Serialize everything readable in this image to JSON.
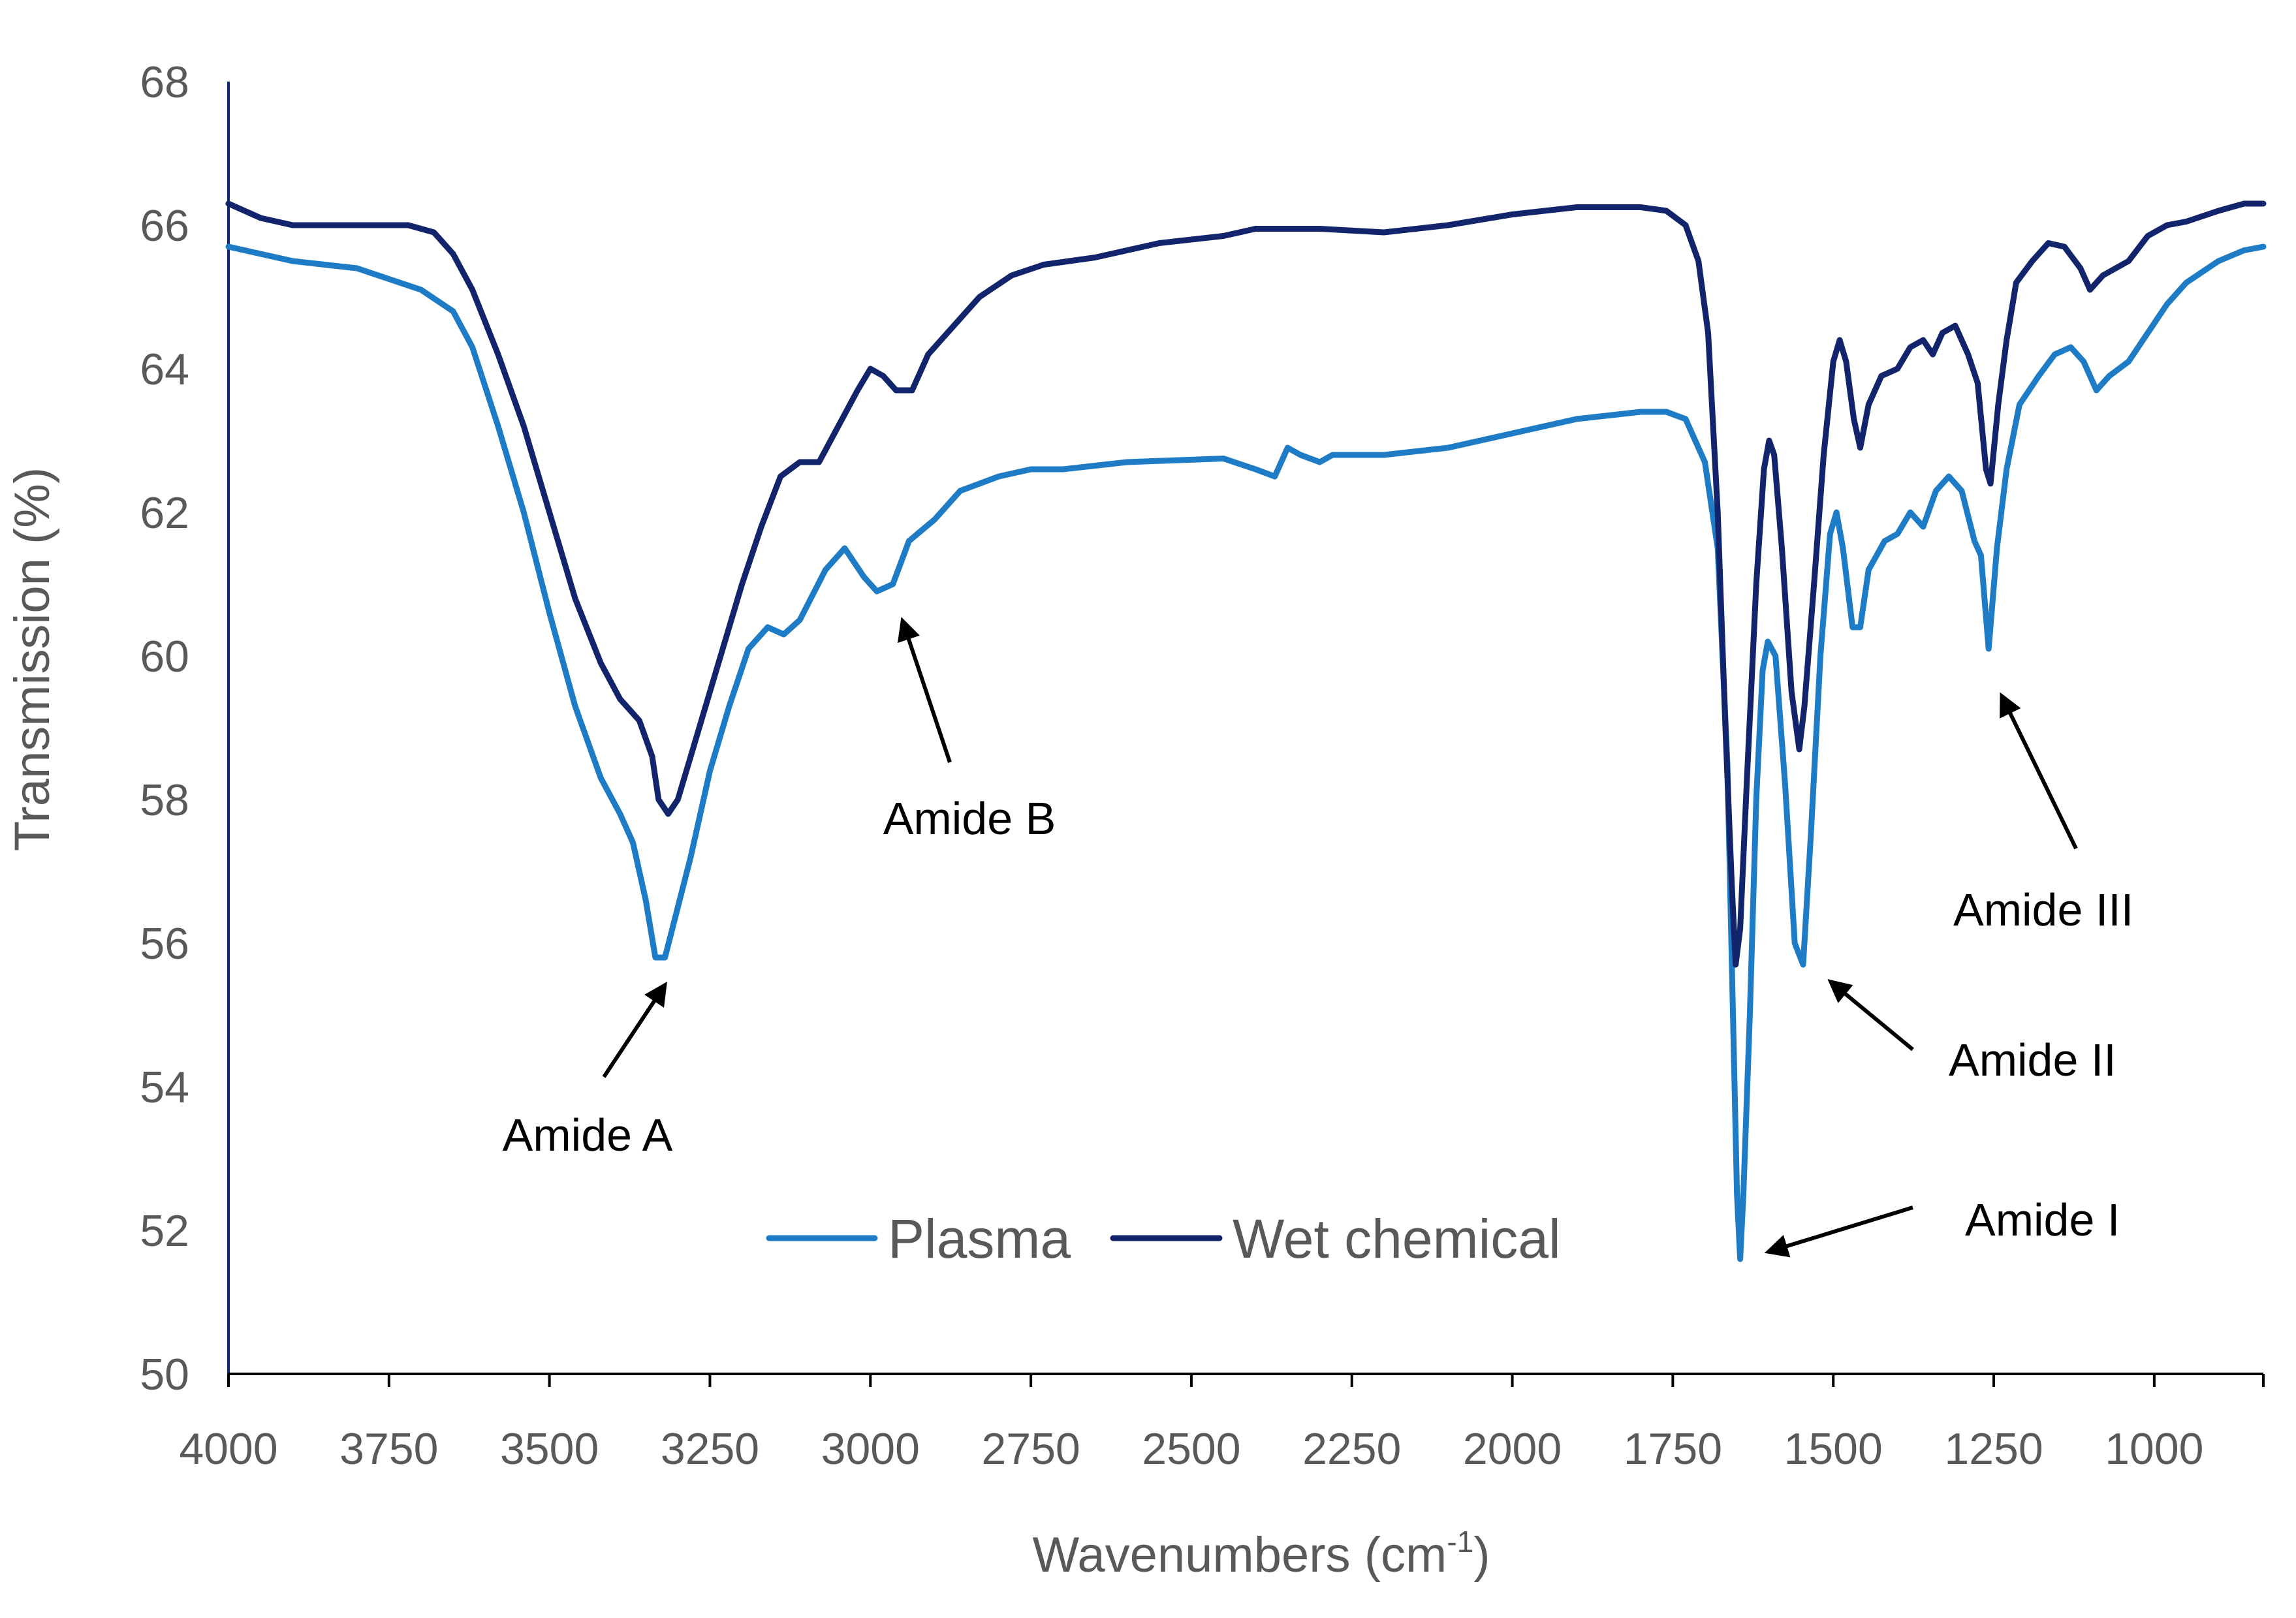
{
  "chart_data": {
    "type": "line",
    "title": "",
    "xlabel": "Wavenumbers (cm",
    "xlabel_sup": "-1",
    "xlabel_suffix": ")",
    "ylabel": "Transmission (%)",
    "xlim": [
      4000,
      830
    ],
    "ylim": [
      50,
      68
    ],
    "x_ticks": [
      4000,
      3750,
      3500,
      3250,
      3000,
      2750,
      2500,
      2250,
      2000,
      1750,
      1500,
      1250,
      1000
    ],
    "y_ticks": [
      50,
      52,
      54,
      56,
      58,
      60,
      62,
      64,
      66,
      68
    ],
    "grid": false,
    "legend_position": "bottom-center",
    "series": [
      {
        "name": "Plasma",
        "color": "#1E7BC6",
        "points": [
          [
            4000,
            65.7
          ],
          [
            3900,
            65.5
          ],
          [
            3800,
            65.4
          ],
          [
            3700,
            65.1
          ],
          [
            3650,
            64.8
          ],
          [
            3620,
            64.3
          ],
          [
            3580,
            63.2
          ],
          [
            3540,
            62.0
          ],
          [
            3500,
            60.6
          ],
          [
            3460,
            59.3
          ],
          [
            3420,
            58.3
          ],
          [
            3390,
            57.8
          ],
          [
            3370,
            57.4
          ],
          [
            3350,
            56.6
          ],
          [
            3335,
            55.8
          ],
          [
            3320,
            55.8
          ],
          [
            3300,
            56.5
          ],
          [
            3280,
            57.2
          ],
          [
            3250,
            58.4
          ],
          [
            3220,
            59.3
          ],
          [
            3190,
            60.1
          ],
          [
            3160,
            60.4
          ],
          [
            3135,
            60.3
          ],
          [
            3110,
            60.5
          ],
          [
            3070,
            61.2
          ],
          [
            3040,
            61.5
          ],
          [
            3010,
            61.1
          ],
          [
            2990,
            60.9
          ],
          [
            2965,
            61.0
          ],
          [
            2940,
            61.6
          ],
          [
            2900,
            61.9
          ],
          [
            2860,
            62.3
          ],
          [
            2800,
            62.5
          ],
          [
            2750,
            62.6
          ],
          [
            2700,
            62.6
          ],
          [
            2600,
            62.7
          ],
          [
            2450,
            62.75
          ],
          [
            2400,
            62.6
          ],
          [
            2370,
            62.5
          ],
          [
            2350,
            62.9
          ],
          [
            2330,
            62.8
          ],
          [
            2300,
            62.7
          ],
          [
            2280,
            62.8
          ],
          [
            2200,
            62.8
          ],
          [
            2100,
            62.9
          ],
          [
            2000,
            63.1
          ],
          [
            1900,
            63.3
          ],
          [
            1800,
            63.4
          ],
          [
            1760,
            63.4
          ],
          [
            1730,
            63.3
          ],
          [
            1700,
            62.7
          ],
          [
            1680,
            61.5
          ],
          [
            1665,
            58.5
          ],
          [
            1655,
            54.5
          ],
          [
            1650,
            52.5
          ],
          [
            1645,
            51.6
          ],
          [
            1640,
            52.5
          ],
          [
            1630,
            55.0
          ],
          [
            1620,
            58.0
          ],
          [
            1610,
            59.8
          ],
          [
            1602,
            60.2
          ],
          [
            1590,
            60.0
          ],
          [
            1575,
            58.2
          ],
          [
            1560,
            56.0
          ],
          [
            1547,
            55.7
          ],
          [
            1535,
            57.5
          ],
          [
            1520,
            60.0
          ],
          [
            1505,
            61.7
          ],
          [
            1495,
            62.0
          ],
          [
            1485,
            61.5
          ],
          [
            1470,
            60.4
          ],
          [
            1458,
            60.4
          ],
          [
            1445,
            61.2
          ],
          [
            1420,
            61.6
          ],
          [
            1400,
            61.7
          ],
          [
            1380,
            62.0
          ],
          [
            1360,
            61.8
          ],
          [
            1340,
            62.3
          ],
          [
            1320,
            62.5
          ],
          [
            1300,
            62.3
          ],
          [
            1280,
            61.6
          ],
          [
            1270,
            61.4
          ],
          [
            1258,
            60.1
          ],
          [
            1245,
            61.5
          ],
          [
            1230,
            62.6
          ],
          [
            1210,
            63.5
          ],
          [
            1180,
            63.9
          ],
          [
            1155,
            64.2
          ],
          [
            1130,
            64.3
          ],
          [
            1110,
            64.1
          ],
          [
            1090,
            63.7
          ],
          [
            1070,
            63.9
          ],
          [
            1040,
            64.1
          ],
          [
            1010,
            64.5
          ],
          [
            980,
            64.9
          ],
          [
            950,
            65.2
          ],
          [
            900,
            65.5
          ],
          [
            860,
            65.65
          ],
          [
            830,
            65.7
          ]
        ]
      },
      {
        "name": "Wet chemical",
        "color": "#12246B",
        "points": [
          [
            4000,
            66.3
          ],
          [
            3950,
            66.1
          ],
          [
            3900,
            66.0
          ],
          [
            3800,
            66.0
          ],
          [
            3720,
            66.0
          ],
          [
            3680,
            65.9
          ],
          [
            3650,
            65.6
          ],
          [
            3620,
            65.1
          ],
          [
            3580,
            64.2
          ],
          [
            3540,
            63.2
          ],
          [
            3500,
            62.0
          ],
          [
            3460,
            60.8
          ],
          [
            3420,
            59.9
          ],
          [
            3390,
            59.4
          ],
          [
            3360,
            59.1
          ],
          [
            3340,
            58.6
          ],
          [
            3330,
            58.0
          ],
          [
            3315,
            57.8
          ],
          [
            3300,
            58.0
          ],
          [
            3280,
            58.6
          ],
          [
            3260,
            59.2
          ],
          [
            3230,
            60.1
          ],
          [
            3200,
            61.0
          ],
          [
            3170,
            61.8
          ],
          [
            3140,
            62.5
          ],
          [
            3110,
            62.7
          ],
          [
            3080,
            62.7
          ],
          [
            3050,
            63.2
          ],
          [
            3020,
            63.7
          ],
          [
            3000,
            64.0
          ],
          [
            2980,
            63.9
          ],
          [
            2960,
            63.7
          ],
          [
            2935,
            63.7
          ],
          [
            2910,
            64.2
          ],
          [
            2870,
            64.6
          ],
          [
            2830,
            65.0
          ],
          [
            2780,
            65.3
          ],
          [
            2730,
            65.45
          ],
          [
            2650,
            65.55
          ],
          [
            2550,
            65.75
          ],
          [
            2450,
            65.85
          ],
          [
            2400,
            65.95
          ],
          [
            2300,
            65.95
          ],
          [
            2200,
            65.9
          ],
          [
            2100,
            66.0
          ],
          [
            2000,
            66.15
          ],
          [
            1900,
            66.25
          ],
          [
            1800,
            66.25
          ],
          [
            1760,
            66.2
          ],
          [
            1730,
            66.0
          ],
          [
            1710,
            65.5
          ],
          [
            1695,
            64.5
          ],
          [
            1680,
            62.0
          ],
          [
            1668,
            59.0
          ],
          [
            1658,
            56.8
          ],
          [
            1652,
            55.7
          ],
          [
            1645,
            56.2
          ],
          [
            1635,
            58.2
          ],
          [
            1620,
            61.0
          ],
          [
            1608,
            62.6
          ],
          [
            1600,
            63.0
          ],
          [
            1592,
            62.8
          ],
          [
            1580,
            61.5
          ],
          [
            1565,
            59.5
          ],
          [
            1553,
            58.7
          ],
          [
            1545,
            59.3
          ],
          [
            1530,
            61.0
          ],
          [
            1515,
            62.8
          ],
          [
            1500,
            64.1
          ],
          [
            1490,
            64.4
          ],
          [
            1480,
            64.1
          ],
          [
            1468,
            63.3
          ],
          [
            1458,
            62.9
          ],
          [
            1445,
            63.5
          ],
          [
            1425,
            63.9
          ],
          [
            1400,
            64.0
          ],
          [
            1380,
            64.3
          ],
          [
            1360,
            64.4
          ],
          [
            1345,
            64.2
          ],
          [
            1330,
            64.5
          ],
          [
            1310,
            64.6
          ],
          [
            1290,
            64.2
          ],
          [
            1275,
            63.8
          ],
          [
            1262,
            62.6
          ],
          [
            1255,
            62.4
          ],
          [
            1243,
            63.5
          ],
          [
            1230,
            64.4
          ],
          [
            1215,
            65.2
          ],
          [
            1190,
            65.5
          ],
          [
            1165,
            65.75
          ],
          [
            1140,
            65.7
          ],
          [
            1115,
            65.4
          ],
          [
            1100,
            65.1
          ],
          [
            1080,
            65.3
          ],
          [
            1060,
            65.4
          ],
          [
            1040,
            65.5
          ],
          [
            1010,
            65.85
          ],
          [
            980,
            66.0
          ],
          [
            950,
            66.05
          ],
          [
            900,
            66.2
          ],
          [
            860,
            66.3
          ],
          [
            830,
            66.3
          ]
        ]
      }
    ],
    "annotations": [
      {
        "label": "Amide A",
        "at": [
          3320,
          55.8
        ]
      },
      {
        "label": "Amide B",
        "at": [
          2950,
          60.9
        ]
      },
      {
        "label": "Amide I",
        "at": [
          1640,
          51.7
        ]
      },
      {
        "label": "Amide II",
        "at": [
          1545,
          55.6
        ]
      },
      {
        "label": "Amide III",
        "at": [
          1258,
          59.9
        ]
      }
    ]
  }
}
